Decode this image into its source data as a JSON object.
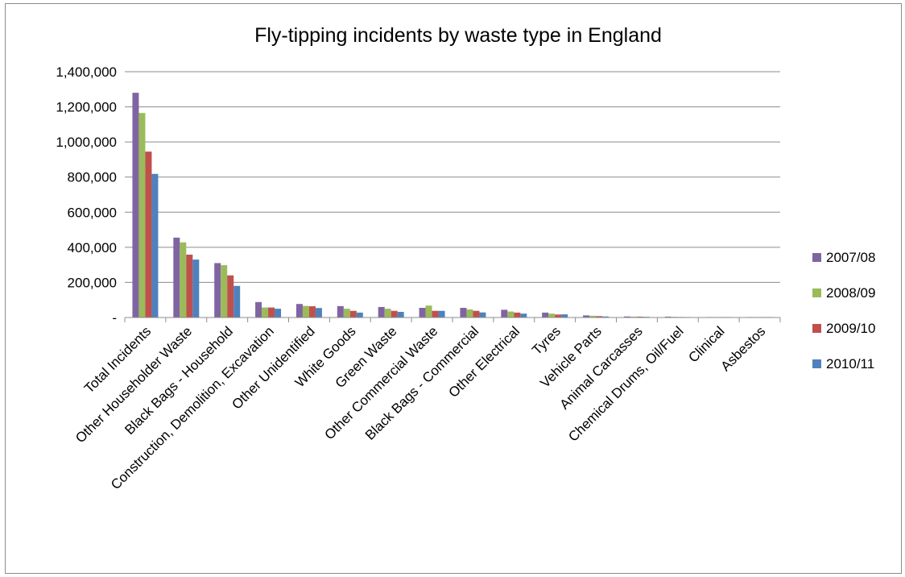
{
  "chart_data": {
    "type": "bar",
    "title": "Fly-tipping incidents by waste type in England",
    "xlabel": "",
    "ylabel": "",
    "ylim": [
      0,
      1400000
    ],
    "yticks": [
      {
        "value": 0,
        "label": "-"
      },
      {
        "value": 200000,
        "label": "200,000"
      },
      {
        "value": 400000,
        "label": "400,000"
      },
      {
        "value": 600000,
        "label": "600,000"
      },
      {
        "value": 800000,
        "label": "800,000"
      },
      {
        "value": 1000000,
        "label": "1,000,000"
      },
      {
        "value": 1200000,
        "label": "1,200,000"
      },
      {
        "value": 1400000,
        "label": "1,400,000"
      }
    ],
    "grid": "horizontal",
    "legend_position": "right",
    "categories": [
      "Total Incidents",
      "Other Householder Waste",
      "Black Bags - Household",
      "Construction, Demolition, Excavation",
      "Other Unidentified",
      "White Goods",
      "Green Waste",
      "Other Commercial Waste",
      "Black Bags - Commercial",
      "Other Electrical",
      "Tyres",
      "Vehicle Parts",
      "Animal Carcasses",
      "Chemical Drums, Oil/Fuel",
      "Clinical",
      "Asbestos"
    ],
    "series": [
      {
        "name": "2007/08",
        "color": "#8064a2",
        "values": [
          1280000,
          455000,
          310000,
          88000,
          77000,
          65000,
          60000,
          55000,
          55000,
          44000,
          28000,
          12000,
          6000,
          5000,
          1500,
          1000
        ]
      },
      {
        "name": "2008/09",
        "color": "#9bbb59",
        "values": [
          1165000,
          428000,
          298000,
          57000,
          66000,
          50000,
          50000,
          68000,
          46000,
          34000,
          22000,
          10000,
          5000,
          4000,
          1300,
          1000
        ]
      },
      {
        "name": "2009/10",
        "color": "#c0504d",
        "values": [
          945000,
          358000,
          240000,
          57000,
          64000,
          38000,
          38000,
          38000,
          38000,
          28000,
          17000,
          8000,
          5000,
          3000,
          1200,
          1000
        ]
      },
      {
        "name": "2010/11",
        "color": "#4f81bd",
        "values": [
          818000,
          330000,
          180000,
          50000,
          54000,
          28000,
          32000,
          38000,
          29000,
          22000,
          18000,
          6000,
          4000,
          2000,
          800,
          900
        ]
      }
    ]
  }
}
